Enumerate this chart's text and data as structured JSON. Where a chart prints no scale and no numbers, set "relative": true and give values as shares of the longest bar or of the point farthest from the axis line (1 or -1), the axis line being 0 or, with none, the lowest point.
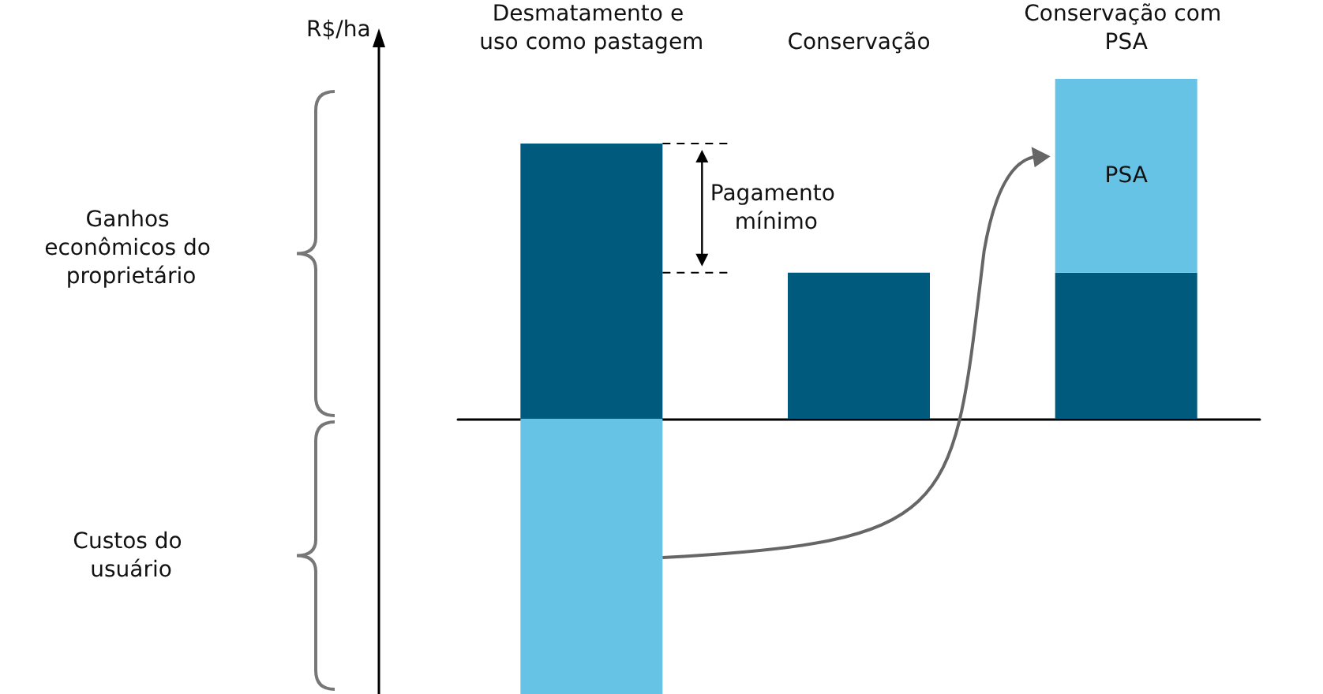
{
  "chart_data": {
    "type": "bar",
    "relative": true,
    "stacked": true,
    "ylabel": "R$/ha",
    "categories": [
      "Desmatamento e uso como pastagem",
      "Conservação",
      "Conservação com PSA"
    ],
    "series": [
      {
        "color": "#005a7d",
        "values": [
          0.81,
          0.43,
          0.43
        ]
      },
      {
        "color": "#67c3e6",
        "values": [
          -0.81,
          null,
          0.57
        ]
      }
    ],
    "annotations": [
      "Ganhos econômicos do proprietário",
      "Custos do usuário",
      "Pagamento mínimo",
      "PSA"
    ]
  }
}
